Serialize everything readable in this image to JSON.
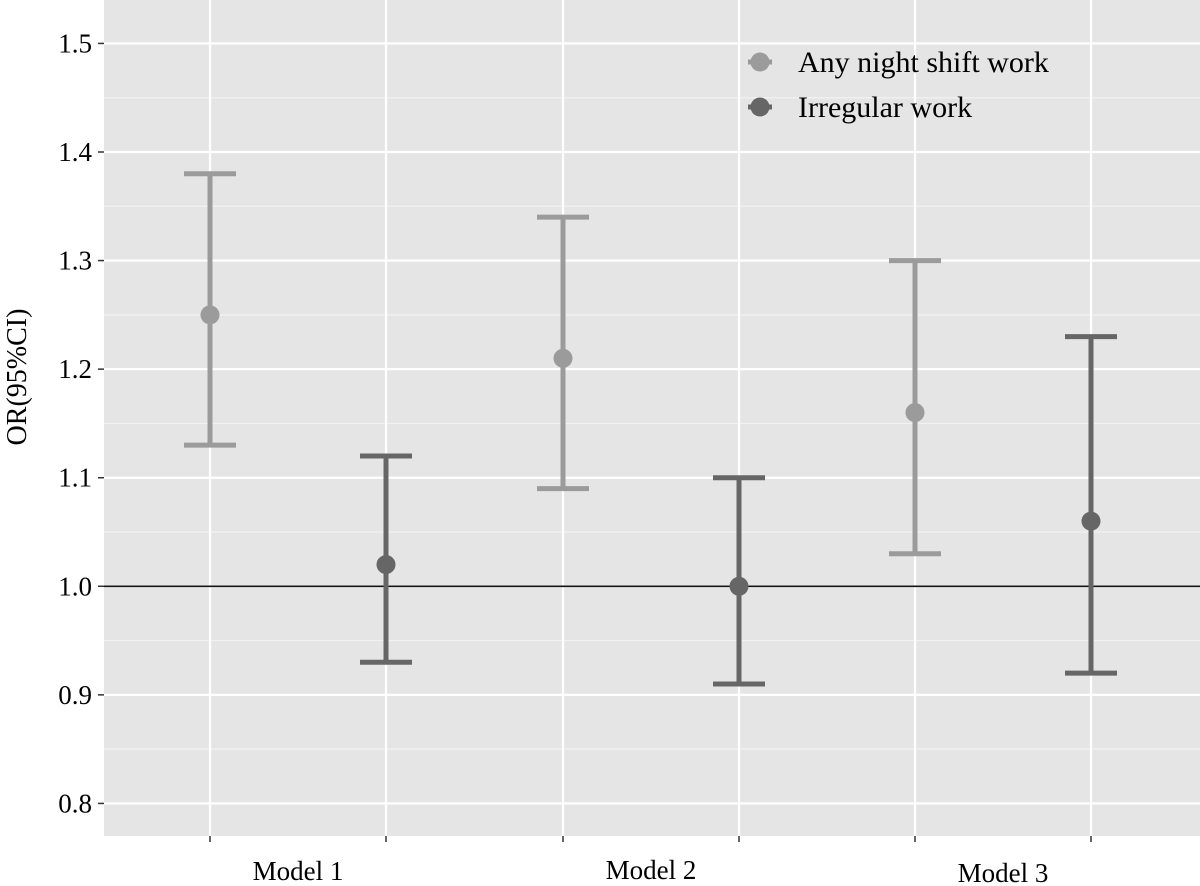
{
  "chart_data": {
    "type": "scatter",
    "subtype": "point-with-error-bars",
    "title": "",
    "xlabel": "",
    "ylabel": "OR(95%CI)",
    "categories": [
      "Model 1",
      "Model 2",
      "Model 3"
    ],
    "yticks": [
      "0.8",
      "0.9",
      "1.0",
      "1.1",
      "1.2",
      "1.3",
      "1.4",
      "1.5"
    ],
    "ylim": [
      0.77,
      1.54
    ],
    "reference_line": 1.0,
    "grid": true,
    "legend_position": "top-right",
    "series": [
      {
        "name": "Any night shift work",
        "color": "#9b9b9b",
        "points": [
          {
            "category": "Model 1",
            "estimate": 1.25,
            "lower": 1.13,
            "upper": 1.38
          },
          {
            "category": "Model 2",
            "estimate": 1.21,
            "lower": 1.09,
            "upper": 1.34
          },
          {
            "category": "Model 3",
            "estimate": 1.16,
            "lower": 1.03,
            "upper": 1.3
          }
        ]
      },
      {
        "name": "Irregular work",
        "color": "#666666",
        "points": [
          {
            "category": "Model 1",
            "estimate": 1.02,
            "lower": 0.93,
            "upper": 1.12
          },
          {
            "category": "Model 2",
            "estimate": 1.0,
            "lower": 0.91,
            "upper": 1.1
          },
          {
            "category": "Model 3",
            "estimate": 1.06,
            "lower": 0.92,
            "upper": 1.23
          }
        ]
      }
    ]
  }
}
